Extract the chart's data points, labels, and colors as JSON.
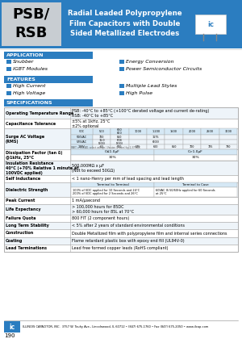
{
  "title_model": "PSB/\nRSB",
  "title_desc": "Radial Leaded Polypropylene\nFilm Capacitors with Double\nSided Metallized Electrodes",
  "header_bg": "#2b7dc0",
  "header_model_bg": "#c8cdd2",
  "section_bg": "#2b7dc0",
  "app_label": "APPLICATION",
  "app_items_left": [
    "Snubber",
    "IGBT Modules"
  ],
  "app_items_right": [
    "Energy Conversion",
    "Power Semiconductor Circuits"
  ],
  "feat_label": "FEATURES",
  "feat_items_left": [
    "High Current",
    "High Voltage"
  ],
  "feat_items_right": [
    "Multiple Lead Styles",
    "High Pulse"
  ],
  "spec_label": "SPECIFICATIONS",
  "bullet_color": "#2b7dc0",
  "table_border": "#aaaaaa",
  "table_header_bg": "#d5e8f5",
  "table_alt_bg": "#eef4f9",
  "bg_color": "#ffffff",
  "footer_text": "ILLINOIS CAPACITOR, INC.  3757 W. Touhy Ave., Lincolnwood, IL 60712 • (847) 675-1760 • Fax (847) 675-2050 • www.ilcap.com",
  "page_num": "190"
}
